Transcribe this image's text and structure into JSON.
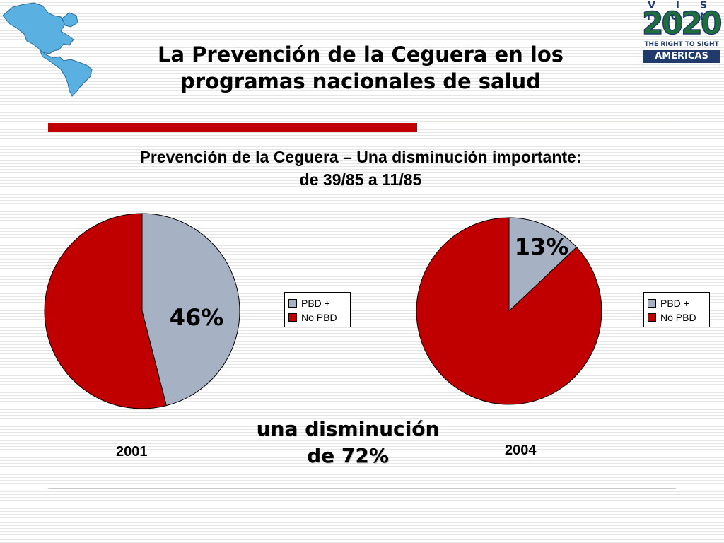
{
  "slide": {
    "title_line1": "La Prevención de la Ceguera en los",
    "title_line2": "programas nacionales de salud",
    "subtitle_line1": "Prevención de la Ceguera – Una disminución importante:",
    "subtitle_line2": "de 39/85 a 11/85",
    "annotation_line1": "una disminución",
    "annotation_line2": "de 72%"
  },
  "logo": {
    "top": "V I S I O N",
    "number": "2020",
    "tagline": "THE RIGHT TO SIGHT",
    "region": "AMERICAS"
  },
  "colors": {
    "pbd_plus": "#a6b1c3",
    "no_pbd": "#c00000",
    "accent_bar": "#c00000",
    "logo_blue": "#1f3a6b",
    "logo_green": "#1e6f3c"
  },
  "chart_data": [
    {
      "type": "pie",
      "xlabel": "2001",
      "labels": [
        "PBD +",
        "No PBD"
      ],
      "values": [
        46,
        54
      ],
      "data_labels": [
        "46%",
        ""
      ],
      "legend_position": "right"
    },
    {
      "type": "pie",
      "xlabel": "2004",
      "labels": [
        "PBD +",
        "No PBD"
      ],
      "values": [
        13,
        87
      ],
      "data_labels": [
        "13%",
        ""
      ],
      "legend_position": "right"
    }
  ]
}
